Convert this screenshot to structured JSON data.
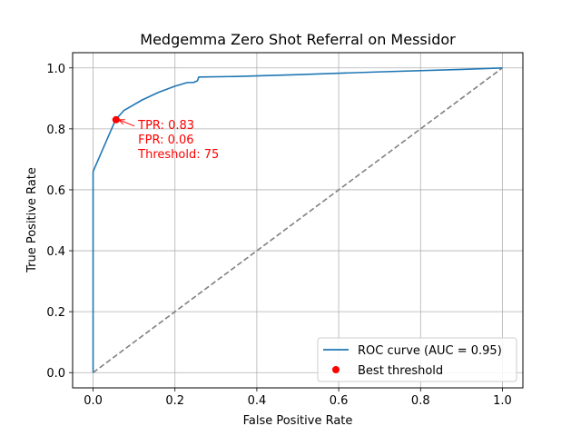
{
  "chart_data": {
    "type": "line",
    "title": "Medgemma Zero Shot Referral on Messidor",
    "xlabel": "False Positive Rate",
    "ylabel": "True Positive Rate",
    "xlim": [
      -0.05,
      1.05
    ],
    "ylim": [
      -0.05,
      1.05
    ],
    "xticks": [
      0.0,
      0.2,
      0.4,
      0.6,
      0.8,
      1.0
    ],
    "yticks": [
      0.0,
      0.2,
      0.4,
      0.6,
      0.8,
      1.0
    ],
    "xtick_labels": [
      "0.0",
      "0.2",
      "0.4",
      "0.6",
      "0.8",
      "1.0"
    ],
    "ytick_labels": [
      "0.0",
      "0.2",
      "0.4",
      "0.6",
      "0.8",
      "1.0"
    ],
    "grid": true,
    "legend_position": "lower-right",
    "series": [
      {
        "name": "ROC curve (AUC = 0.95)",
        "kind": "line",
        "color": "#1f77b4",
        "x": [
          0.0,
          0.0,
          0.0,
          0.055,
          0.075,
          0.12,
          0.16,
          0.2,
          0.23,
          0.245,
          0.255,
          0.258,
          0.35,
          0.5,
          0.7,
          0.9,
          1.0
        ],
        "y": [
          0.0,
          0.6,
          0.66,
          0.83,
          0.86,
          0.895,
          0.92,
          0.94,
          0.952,
          0.952,
          0.958,
          0.97,
          0.972,
          0.978,
          0.987,
          0.995,
          1.0
        ]
      },
      {
        "name": "Best threshold",
        "kind": "scatter",
        "color": "#ff0000",
        "x": [
          0.056
        ],
        "y": [
          0.83
        ]
      },
      {
        "kind": "reference-line",
        "style": "dashed",
        "color": "#808080",
        "x": [
          0.0,
          1.0
        ],
        "y": [
          0.0,
          1.0
        ]
      }
    ],
    "annotation": {
      "lines": [
        "TPR: 0.83",
        "FPR: 0.06",
        "Threshold: 75"
      ],
      "color": "#ff0000",
      "point": [
        0.056,
        0.83
      ],
      "text_anchor": [
        0.11,
        0.815
      ]
    }
  }
}
